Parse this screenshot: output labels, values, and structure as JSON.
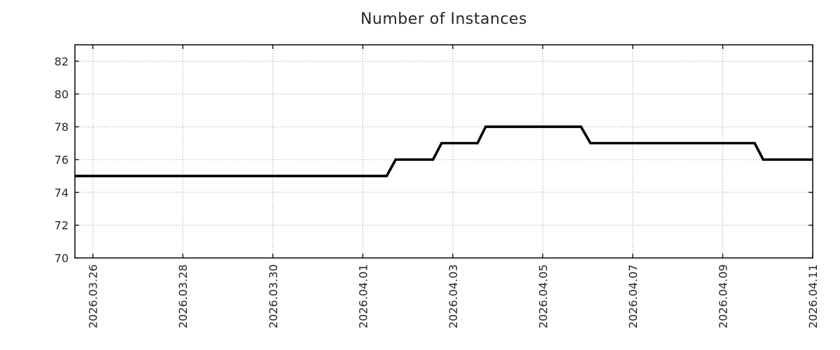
{
  "colors": {
    "background": "#ffffff",
    "line": "#000000",
    "axis": "#000000",
    "grid": "#a9a9a9",
    "text": "#262626"
  },
  "chart_data": {
    "type": "line",
    "title": "Number of Instances",
    "xlabel": "",
    "ylabel": "",
    "legend": "none",
    "grid": "dotted",
    "x_unit": "days since 2026.03.26",
    "x_tick_labels": [
      "2026.03.26",
      "2026.03.28",
      "2026.03.30",
      "2026.04.01",
      "2026.04.03",
      "2026.04.05",
      "2026.04.07",
      "2026.04.09",
      "2026.04.11"
    ],
    "x_tick_day_offsets": [
      0,
      2,
      4,
      6,
      8,
      10,
      12,
      14,
      16
    ],
    "xlim_day_offsets": [
      -0.4,
      16
    ],
    "y_ticks": [
      70,
      72,
      74,
      76,
      78,
      80,
      82
    ],
    "ylim": [
      70,
      83
    ],
    "series": [
      {
        "name": "Number of Instances",
        "color": "#000000",
        "points_day_value": [
          [
            -0.4,
            75
          ],
          [
            6.53,
            75
          ],
          [
            6.73,
            76
          ],
          [
            7.56,
            76
          ],
          [
            7.75,
            77
          ],
          [
            8.55,
            77
          ],
          [
            8.73,
            78
          ],
          [
            10.85,
            78
          ],
          [
            11.06,
            77
          ],
          [
            14.71,
            77
          ],
          [
            14.9,
            76
          ],
          [
            16.0,
            76
          ]
        ]
      }
    ]
  }
}
